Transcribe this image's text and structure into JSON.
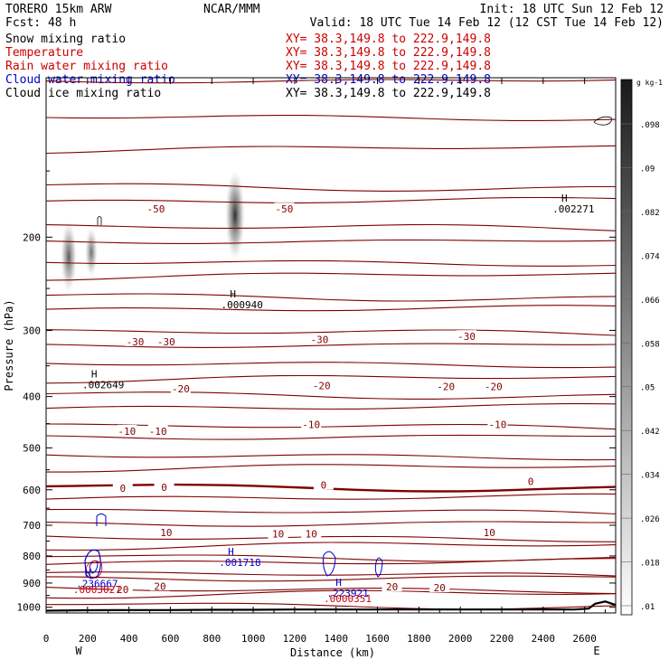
{
  "header": {
    "model": "TORERO  15km ARW",
    "center": "NCAR/MMM",
    "init": "Init: 18 UTC Sun 12 Feb 12",
    "fcst": "Fcst:  48 h",
    "valid": "Valid: 18 UTC Tue 14 Feb 12 (12 CST Tue 14 Feb 12)"
  },
  "legend": [
    {
      "name": "Snow mixing ratio",
      "color": "#000000",
      "xy": "XY=  38.3,149.8 to 222.9,149.8",
      "xy_color": "#cc0000"
    },
    {
      "name": "Temperature",
      "color": "#cc0000",
      "xy": "XY=  38.3,149.8 to 222.9,149.8",
      "xy_color": "#cc0000"
    },
    {
      "name": "Rain water mixing ratio",
      "color": "#cc0000",
      "xy": "XY=  38.3,149.8 to 222.9,149.8",
      "xy_color": "#cc0000"
    },
    {
      "name": "Cloud water mixing ratio",
      "color": "#0000cc",
      "xy": "XY=  38.3,149.8 to 222.9,149.8",
      "xy_color": "#0000cc"
    },
    {
      "name": "Cloud ice mixing ratio",
      "color": "#000000",
      "xy": "XY=  38.3,149.8 to 222.9,149.8",
      "xy_color": "#000000"
    }
  ],
  "colors": {
    "isotherm": "#800000",
    "zero_isotherm": "#800000",
    "cloud_water": "#0000cc",
    "rain": "#cc0000",
    "terrain": "#000000"
  },
  "chart_data": {
    "type": "cross-section",
    "xlabel": "Distance (km)",
    "ylabel": "Pressure (hPa)",
    "xlim": [
      0,
      2750
    ],
    "ylim": [
      1025,
      100
    ],
    "y_log": true,
    "x_ticks": [
      "0",
      "200",
      "400",
      "600",
      "800",
      "1000",
      "1200",
      "1400",
      "1600",
      "1800",
      "2000",
      "2200",
      "2400",
      "2600"
    ],
    "x_tick_values": [
      0,
      200,
      400,
      600,
      800,
      1000,
      1200,
      1400,
      1600,
      1800,
      2000,
      2200,
      2400,
      2600
    ],
    "y_ticks": [
      "200",
      "300",
      "400",
      "500",
      "600",
      "700",
      "800",
      "900",
      "1000"
    ],
    "y_tick_values": [
      200,
      300,
      400,
      500,
      600,
      700,
      800,
      900,
      1000
    ],
    "end_labels": {
      "left": "W",
      "right": "E"
    },
    "isotherm_labels": [
      {
        "text": "-50",
        "x": 530,
        "p": 177
      },
      {
        "text": "-50",
        "x": 1150,
        "p": 177
      },
      {
        "text": "-30",
        "x": 430,
        "p": 315
      },
      {
        "text": "-30",
        "x": 580,
        "p": 315
      },
      {
        "text": "-30",
        "x": 1320,
        "p": 312
      },
      {
        "text": "-30",
        "x": 2030,
        "p": 308
      },
      {
        "text": "-20",
        "x": 650,
        "p": 387
      },
      {
        "text": "-20",
        "x": 1330,
        "p": 381
      },
      {
        "text": "-20",
        "x": 1930,
        "p": 383
      },
      {
        "text": "-20",
        "x": 2160,
        "p": 383
      },
      {
        "text": "-10",
        "x": 390,
        "p": 465
      },
      {
        "text": "-10",
        "x": 540,
        "p": 465
      },
      {
        "text": "-10",
        "x": 1280,
        "p": 452
      },
      {
        "text": "-10",
        "x": 2180,
        "p": 452
      },
      {
        "text": "0",
        "x": 370,
        "p": 596
      },
      {
        "text": "0",
        "x": 570,
        "p": 593
      },
      {
        "text": "0",
        "x": 1340,
        "p": 588
      },
      {
        "text": "0",
        "x": 2340,
        "p": 578
      },
      {
        "text": "10",
        "x": 580,
        "p": 722
      },
      {
        "text": "10",
        "x": 1120,
        "p": 727
      },
      {
        "text": "10",
        "x": 1280,
        "p": 727
      },
      {
        "text": "10",
        "x": 2140,
        "p": 722
      },
      {
        "text": "20",
        "x": 550,
        "p": 912
      },
      {
        "text": "20",
        "x": 1670,
        "p": 915
      },
      {
        "text": "20",
        "x": 1900,
        "p": 918
      },
      {
        "text": "20",
        "x": 370,
        "p": 925
      }
    ],
    "maxima_labels": [
      {
        "marker": "H",
        "value": ".002271",
        "x": 2450,
        "p": 177,
        "color": "#000000"
      },
      {
        "marker": "H",
        "value": ".000940",
        "x": 850,
        "p": 268,
        "color": "#000000"
      },
      {
        "marker": "H",
        "value": ".002649",
        "x": 180,
        "p": 380,
        "color": "#000000"
      },
      {
        "marker": "H",
        "value": ".001718",
        "x": 840,
        "p": 822,
        "color": "#0000cc"
      },
      {
        "marker": "H",
        "value": ".236667",
        "x": 150,
        "p": 902,
        "color": "#0000cc"
      },
      {
        "marker": "",
        "value": ".0003027",
        "x": 150,
        "p": 925,
        "color": "#cc0000"
      },
      {
        "marker": "H",
        "value": ".223921",
        "x": 1360,
        "p": 940,
        "color": "#0000cc"
      },
      {
        "marker": "",
        "value": ".0000351",
        "x": 1360,
        "p": 963,
        "color": "#cc0000"
      }
    ],
    "colorbar": {
      "unit": "g kg-1",
      "labels": [
        ".098",
        ".09",
        ".082",
        ".074",
        ".066",
        ".058",
        ".05",
        ".042",
        ".034",
        ".026",
        ".018",
        ".01"
      ]
    }
  }
}
